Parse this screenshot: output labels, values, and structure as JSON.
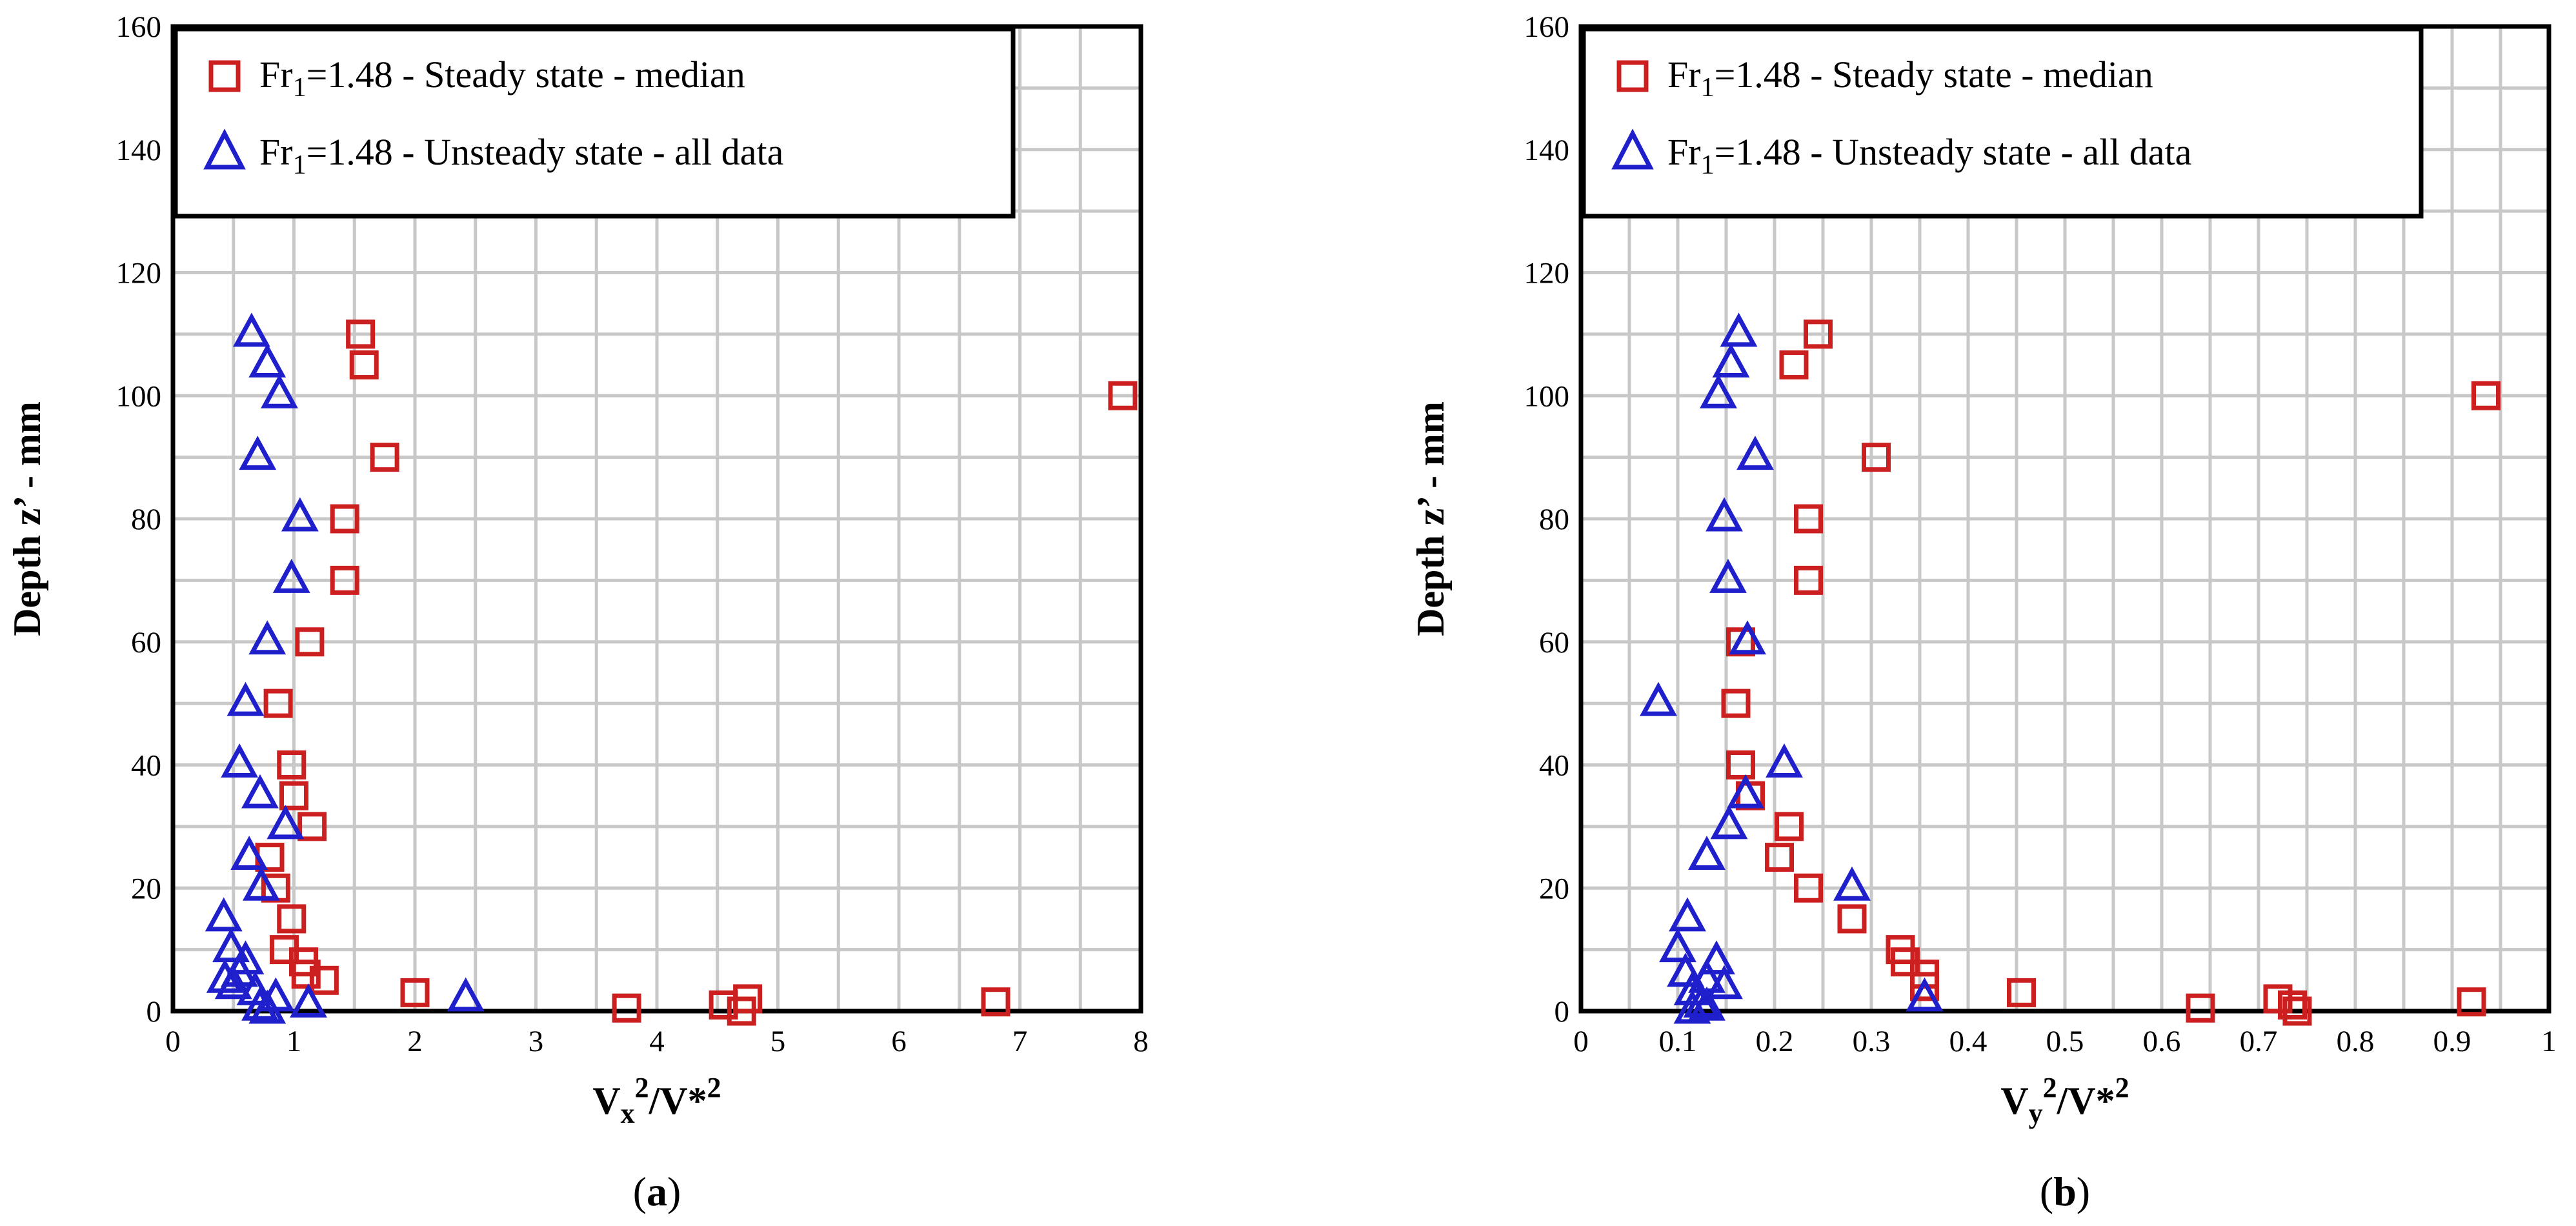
{
  "chart_data": [
    {
      "type": "scatter",
      "panel_label": "(a)",
      "panel_letter": "a",
      "xlabel_main": "V",
      "xlabel_sub": "x",
      "xlabel_rest": "/V*",
      "ylabel": "Depth z’ - mm",
      "xlim": [
        0,
        8
      ],
      "ylim": [
        0,
        160
      ],
      "xticks": [
        0,
        1,
        2,
        3,
        4,
        5,
        6,
        7,
        8
      ],
      "xtick_labels": [
        "0",
        "1",
        "2",
        "3",
        "4",
        "5",
        "6",
        "7",
        "8"
      ],
      "yticks": [
        0,
        20,
        40,
        60,
        80,
        100,
        120,
        140,
        160
      ],
      "ytick_labels": [
        "0",
        "20",
        "40",
        "60",
        "80",
        "100",
        "120",
        "140",
        "160"
      ],
      "grid": true,
      "legend_position": "top-left",
      "series": [
        {
          "name": "Fr1=1.48 - Steady state - median",
          "legend_main": "Fr",
          "legend_sub": "1",
          "legend_rest": "=1.48 - Steady state - median",
          "marker": "square",
          "color": "#cc1f1f",
          "points": [
            [
              1.55,
              110
            ],
            [
              1.58,
              105
            ],
            [
              7.85,
              100
            ],
            [
              1.75,
              90
            ],
            [
              1.42,
              80
            ],
            [
              1.42,
              70
            ],
            [
              1.13,
              60
            ],
            [
              0.87,
              50
            ],
            [
              0.98,
              40
            ],
            [
              1.0,
              35
            ],
            [
              1.15,
              30
            ],
            [
              0.8,
              25
            ],
            [
              0.85,
              20
            ],
            [
              0.98,
              15
            ],
            [
              0.92,
              10
            ],
            [
              1.08,
              8
            ],
            [
              1.1,
              6
            ],
            [
              1.25,
              5
            ],
            [
              2.0,
              3
            ],
            [
              4.75,
              2
            ],
            [
              6.8,
              1.5
            ],
            [
              4.55,
              1
            ],
            [
              3.75,
              0.5
            ],
            [
              4.7,
              0
            ]
          ]
        },
        {
          "name": "Fr1=1.48 - Unsteady state - all data",
          "legend_main": "Fr",
          "legend_sub": "1",
          "legend_rest": "=1.48 - Unsteady state - all data",
          "marker": "triangle",
          "color": "#1f1fcc",
          "points": [
            [
              0.65,
              110
            ],
            [
              0.78,
              105
            ],
            [
              0.88,
              100
            ],
            [
              0.7,
              90
            ],
            [
              1.05,
              80
            ],
            [
              0.98,
              70
            ],
            [
              0.78,
              60
            ],
            [
              0.6,
              50
            ],
            [
              0.55,
              40
            ],
            [
              0.72,
              35
            ],
            [
              0.93,
              30
            ],
            [
              0.63,
              25
            ],
            [
              0.73,
              20
            ],
            [
              0.42,
              15
            ],
            [
              0.48,
              10
            ],
            [
              0.6,
              8
            ],
            [
              0.55,
              6
            ],
            [
              0.43,
              5
            ],
            [
              0.5,
              4
            ],
            [
              0.68,
              3
            ],
            [
              0.85,
              2
            ],
            [
              2.42,
              2
            ],
            [
              1.12,
              1
            ],
            [
              0.72,
              0.5
            ],
            [
              0.78,
              0
            ]
          ]
        }
      ]
    },
    {
      "type": "scatter",
      "panel_label": "(b)",
      "panel_letter": "b",
      "xlabel_main": "V",
      "xlabel_sub": "y",
      "xlabel_rest": "/V*",
      "ylabel": "Depth z’ - mm",
      "xlim": [
        0,
        1
      ],
      "ylim": [
        0,
        160
      ],
      "xticks": [
        0,
        0.1,
        0.2,
        0.3,
        0.4,
        0.5,
        0.6,
        0.7,
        0.8,
        0.9,
        1
      ],
      "xtick_labels": [
        "0",
        "0.1",
        "0.2",
        "0.3",
        "0.4",
        "0.5",
        "0.6",
        "0.7",
        "0.8",
        "0.9",
        "1"
      ],
      "yticks": [
        0,
        20,
        40,
        60,
        80,
        100,
        120,
        140,
        160
      ],
      "ytick_labels": [
        "0",
        "20",
        "40",
        "60",
        "80",
        "100",
        "120",
        "140",
        "160"
      ],
      "grid": true,
      "legend_position": "top-left",
      "series": [
        {
          "name": "Fr1=1.48 - Steady state - median",
          "legend_main": "Fr",
          "legend_sub": "1",
          "legend_rest": "=1.48 - Steady state - median",
          "marker": "square",
          "color": "#cc1f1f",
          "points": [
            [
              0.245,
              110
            ],
            [
              0.22,
              105
            ],
            [
              0.935,
              100
            ],
            [
              0.305,
              90
            ],
            [
              0.235,
              80
            ],
            [
              0.235,
              70
            ],
            [
              0.165,
              60
            ],
            [
              0.16,
              50
            ],
            [
              0.165,
              40
            ],
            [
              0.175,
              35
            ],
            [
              0.215,
              30
            ],
            [
              0.205,
              25
            ],
            [
              0.235,
              20
            ],
            [
              0.28,
              15
            ],
            [
              0.33,
              10
            ],
            [
              0.335,
              8
            ],
            [
              0.355,
              6
            ],
            [
              0.355,
              4
            ],
            [
              0.455,
              3
            ],
            [
              0.72,
              2
            ],
            [
              0.92,
              1.5
            ],
            [
              0.735,
              1
            ],
            [
              0.64,
              0.5
            ],
            [
              0.74,
              0
            ]
          ]
        },
        {
          "name": "Fr1=1.48 - Unsteady state - all data",
          "legend_main": "Fr",
          "legend_sub": "1",
          "legend_rest": "=1.48 - Unsteady state - all data",
          "marker": "triangle",
          "color": "#1f1fcc",
          "points": [
            [
              0.163,
              110
            ],
            [
              0.155,
              105
            ],
            [
              0.142,
              100
            ],
            [
              0.18,
              90
            ],
            [
              0.148,
              80
            ],
            [
              0.152,
              70
            ],
            [
              0.172,
              60
            ],
            [
              0.08,
              50
            ],
            [
              0.21,
              40
            ],
            [
              0.17,
              35
            ],
            [
              0.153,
              30
            ],
            [
              0.13,
              25
            ],
            [
              0.28,
              20
            ],
            [
              0.11,
              15
            ],
            [
              0.1,
              10
            ],
            [
              0.14,
              8
            ],
            [
              0.108,
              6
            ],
            [
              0.13,
              5
            ],
            [
              0.148,
              4
            ],
            [
              0.115,
              3
            ],
            [
              0.355,
              2
            ],
            [
              0.125,
              1
            ],
            [
              0.13,
              0.5
            ],
            [
              0.115,
              0
            ]
          ]
        }
      ]
    }
  ]
}
